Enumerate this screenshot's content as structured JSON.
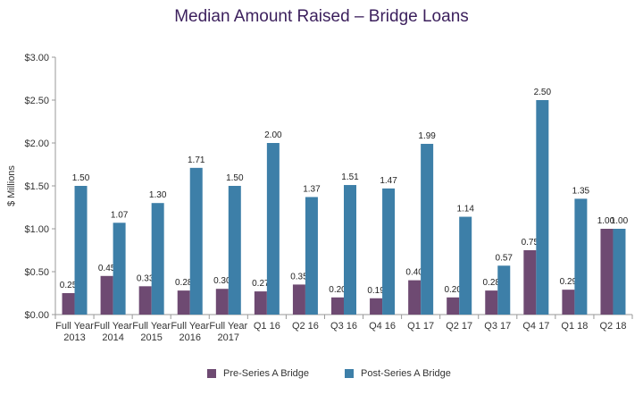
{
  "chart_data": {
    "type": "bar",
    "title": "Median Amount Raised – Bridge Loans",
    "ylabel": "$ Millions",
    "xlabel": "",
    "ylim": [
      0,
      3
    ],
    "yticks": [
      "$0.00",
      "$0.50",
      "$1.00",
      "$1.50",
      "$2.00",
      "$2.50",
      "$3.00"
    ],
    "grid": false,
    "legend_position": "bottom",
    "categories": [
      [
        "Full Year",
        "2013"
      ],
      [
        "Full Year",
        "2014"
      ],
      [
        "Full Year",
        "2015"
      ],
      [
        "Full Year",
        "2016"
      ],
      [
        "Full Year",
        "2017"
      ],
      [
        "Q1  16"
      ],
      [
        "Q2  16"
      ],
      [
        "Q3  16"
      ],
      [
        "Q4  16"
      ],
      [
        "Q1  17"
      ],
      [
        "Q2  17"
      ],
      [
        "Q3  17"
      ],
      [
        "Q4  17"
      ],
      [
        "Q1  18"
      ],
      [
        "Q2  18"
      ]
    ],
    "series": [
      {
        "name": "Pre-Series A Bridge",
        "color": "#6e4a72",
        "values": [
          0.25,
          0.45,
          0.33,
          0.28,
          0.3,
          0.27,
          0.35,
          0.2,
          0.19,
          0.4,
          0.2,
          0.28,
          0.75,
          0.29,
          1.0
        ],
        "labels": [
          "0.25",
          "0.45",
          "0.33",
          "0.28",
          "0.30",
          "0.27",
          "0.35",
          "0.20",
          "0.19",
          "0.40",
          "0.20",
          "0.28",
          "0.75",
          "0.29",
          "1.00"
        ]
      },
      {
        "name": "Post-Series A Bridge",
        "color": "#3d7fa8",
        "values": [
          1.5,
          1.07,
          1.3,
          1.71,
          1.5,
          2.0,
          1.37,
          1.51,
          1.47,
          1.99,
          1.14,
          0.57,
          2.5,
          1.35,
          1.0
        ],
        "labels": [
          "1.50",
          "1.07",
          "1.30",
          "1.71",
          "1.50",
          "2.00",
          "1.37",
          "1.51",
          "1.47",
          "1.99",
          "1.14",
          "0.57",
          "2.50",
          "1.35",
          "1.00"
        ]
      }
    ]
  }
}
